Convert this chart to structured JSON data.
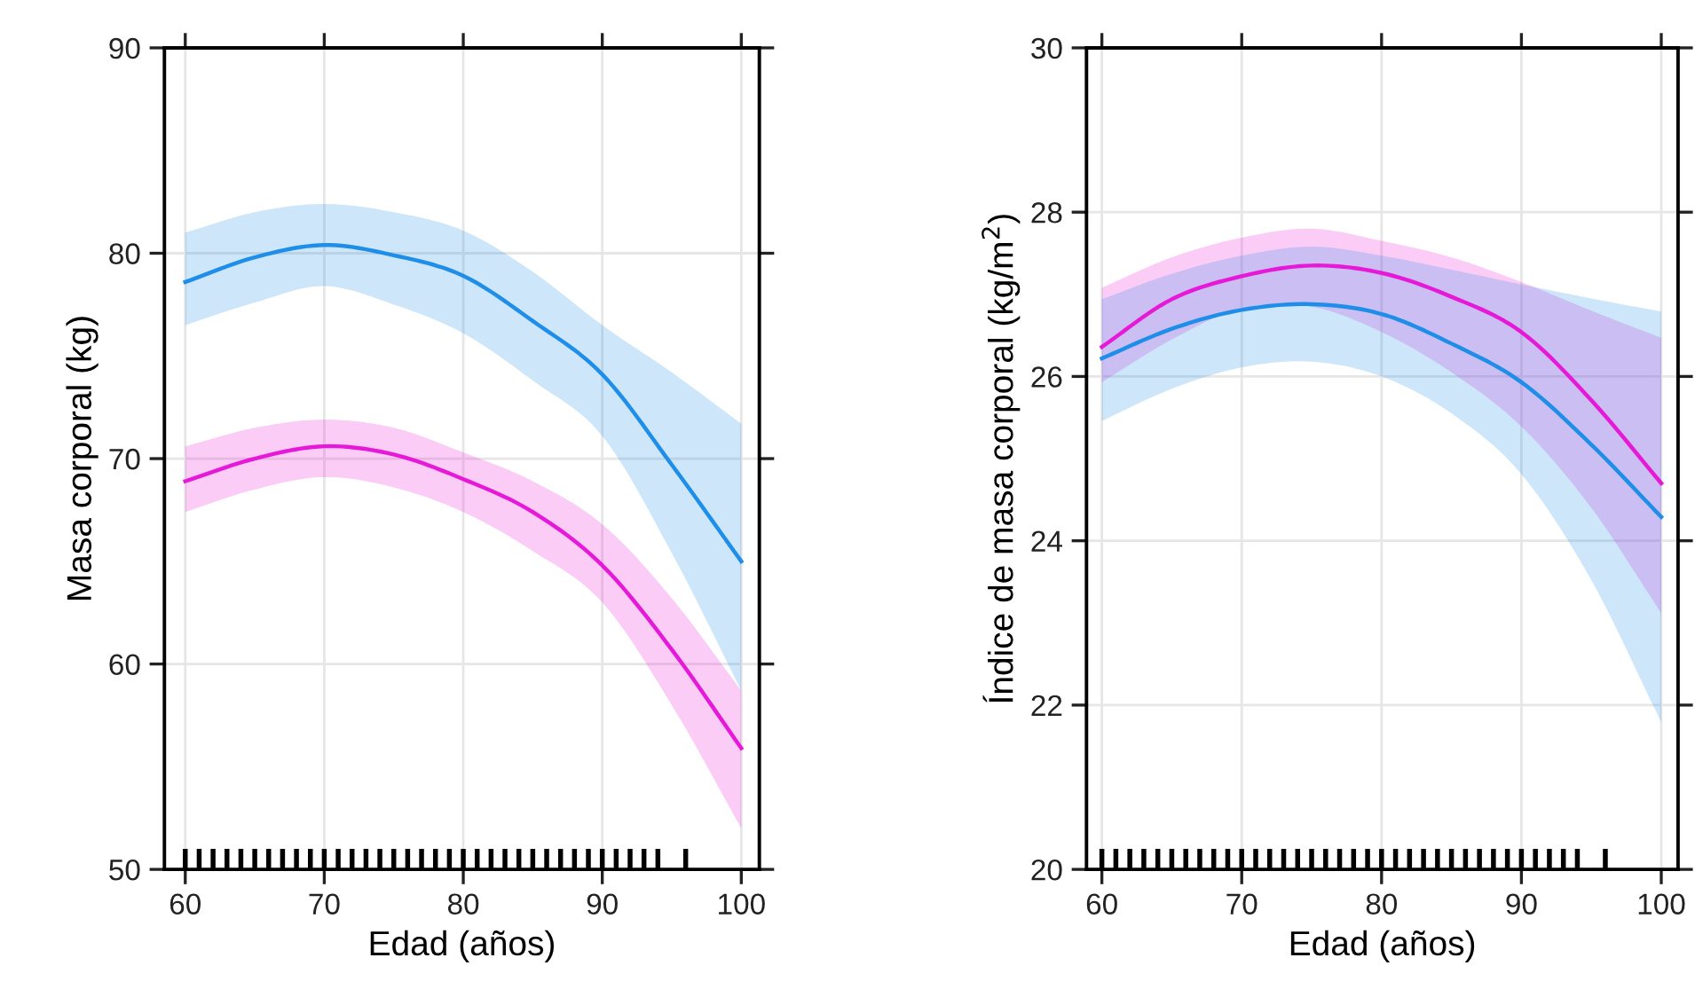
{
  "chart_data": [
    {
      "type": "line",
      "xlabel": "Edad (años)",
      "ylabel": "Masa corporal (kg)",
      "xlim": [
        58.5,
        101.3
      ],
      "ylim": [
        50,
        90
      ],
      "xticks": [
        60,
        70,
        80,
        90,
        100
      ],
      "yticks": [
        50,
        60,
        70,
        80,
        90
      ],
      "grid": true,
      "series": [
        {
          "color": "#1f8ee8",
          "x": [
            60,
            65,
            70,
            75,
            80,
            85,
            90,
            95,
            100
          ],
          "values": [
            78.6,
            79.8,
            80.4,
            79.9,
            78.9,
            76.7,
            74.1,
            69.7,
            65.0
          ],
          "lower": [
            76.5,
            77.6,
            78.4,
            77.5,
            76.1,
            73.8,
            71.1,
            65.4,
            58.7
          ],
          "upper": [
            81.0,
            82.0,
            82.4,
            82.0,
            81.1,
            79.1,
            76.5,
            74.2,
            71.7
          ]
        },
        {
          "color": "#e619d8",
          "x": [
            60,
            65,
            70,
            75,
            80,
            85,
            90,
            95,
            100
          ],
          "values": [
            68.9,
            70.0,
            70.6,
            70.2,
            69.0,
            67.4,
            64.8,
            60.7,
            55.9
          ],
          "lower": [
            67.4,
            68.5,
            69.1,
            68.6,
            67.4,
            65.5,
            63.0,
            58.0,
            52.0
          ],
          "upper": [
            70.6,
            71.5,
            71.9,
            71.5,
            70.3,
            68.9,
            66.8,
            63.2,
            58.7
          ]
        },
        {
          "type": "bar",
          "color": "#000000",
          "x": [
            60,
            61,
            62,
            63,
            64,
            65,
            66,
            67,
            68,
            69,
            70,
            71,
            72,
            73,
            74,
            75,
            76,
            77,
            78,
            79,
            80,
            81,
            82,
            83,
            84,
            85,
            86,
            87,
            88,
            89,
            90,
            91,
            92,
            93,
            94,
            96
          ],
          "base": [
            50,
            50,
            50,
            50,
            50,
            50,
            50,
            50,
            50,
            50,
            50,
            50,
            50,
            50,
            50,
            50,
            50,
            50,
            50,
            50,
            50,
            50,
            50,
            50,
            50,
            50,
            50,
            50,
            50,
            50,
            50,
            50,
            50,
            50,
            50,
            50
          ],
          "values": [
            1,
            1,
            1,
            1,
            1,
            1,
            1,
            1,
            1,
            1,
            1,
            1,
            1,
            1,
            1,
            1,
            1,
            1,
            1,
            1,
            1,
            1,
            1,
            1,
            1,
            1,
            1,
            1,
            1,
            1,
            1,
            1,
            1,
            1,
            1,
            1
          ]
        }
      ]
    },
    {
      "type": "line",
      "xlabel": "Edad (años)",
      "ylabel": "Índice de masa corporal (kg/m$^{2}$)",
      "xlim": [
        58.9,
        101.2
      ],
      "ylim": [
        20,
        30
      ],
      "xticks": [
        60,
        70,
        80,
        90,
        100
      ],
      "yticks": [
        20,
        22,
        24,
        26,
        28,
        30
      ],
      "grid": true,
      "series": [
        {
          "color": "#e619d8",
          "x": [
            60,
            65,
            70,
            75,
            80,
            85,
            90,
            95,
            100
          ],
          "values": [
            26.36,
            26.94,
            27.22,
            27.35,
            27.26,
            26.97,
            26.54,
            25.71,
            24.7
          ],
          "lower": [
            25.93,
            26.45,
            26.83,
            26.85,
            26.54,
            26.05,
            25.39,
            24.4,
            23.12
          ],
          "upper": [
            27.08,
            27.45,
            27.69,
            27.8,
            27.65,
            27.45,
            27.15,
            26.8,
            26.47
          ]
        },
        {
          "color": "#1f8ee8",
          "x": [
            60,
            65,
            70,
            75,
            80,
            85,
            90,
            95,
            100
          ],
          "values": [
            26.22,
            26.58,
            26.81,
            26.88,
            26.76,
            26.4,
            25.93,
            25.17,
            24.29
          ],
          "lower": [
            25.46,
            25.85,
            26.11,
            26.18,
            26.0,
            25.55,
            24.81,
            23.52,
            21.79
          ],
          "upper": [
            26.94,
            27.25,
            27.47,
            27.58,
            27.47,
            27.3,
            27.12,
            26.95,
            26.79
          ]
        },
        {
          "type": "bar",
          "color": "#000000",
          "x": [
            60,
            61,
            62,
            63,
            64,
            65,
            66,
            67,
            68,
            69,
            70,
            71,
            72,
            73,
            74,
            75,
            76,
            77,
            78,
            79,
            80,
            81,
            82,
            83,
            84,
            85,
            86,
            87,
            88,
            89,
            90,
            91,
            92,
            93,
            94,
            96
          ],
          "base": [
            20,
            20,
            20,
            20,
            20,
            20,
            20,
            20,
            20,
            20,
            20,
            20,
            20,
            20,
            20,
            20,
            20,
            20,
            20,
            20,
            20,
            20,
            20,
            20,
            20,
            20,
            20,
            20,
            20,
            20,
            20,
            20,
            20,
            20,
            20,
            20
          ],
          "values": [
            0.25,
            0.25,
            0.25,
            0.25,
            0.25,
            0.25,
            0.25,
            0.25,
            0.25,
            0.25,
            0.25,
            0.25,
            0.25,
            0.25,
            0.25,
            0.25,
            0.25,
            0.25,
            0.25,
            0.25,
            0.25,
            0.25,
            0.25,
            0.25,
            0.25,
            0.25,
            0.25,
            0.25,
            0.25,
            0.25,
            0.25,
            0.25,
            0.25,
            0.25,
            0.25,
            0.25
          ]
        }
      ]
    }
  ]
}
